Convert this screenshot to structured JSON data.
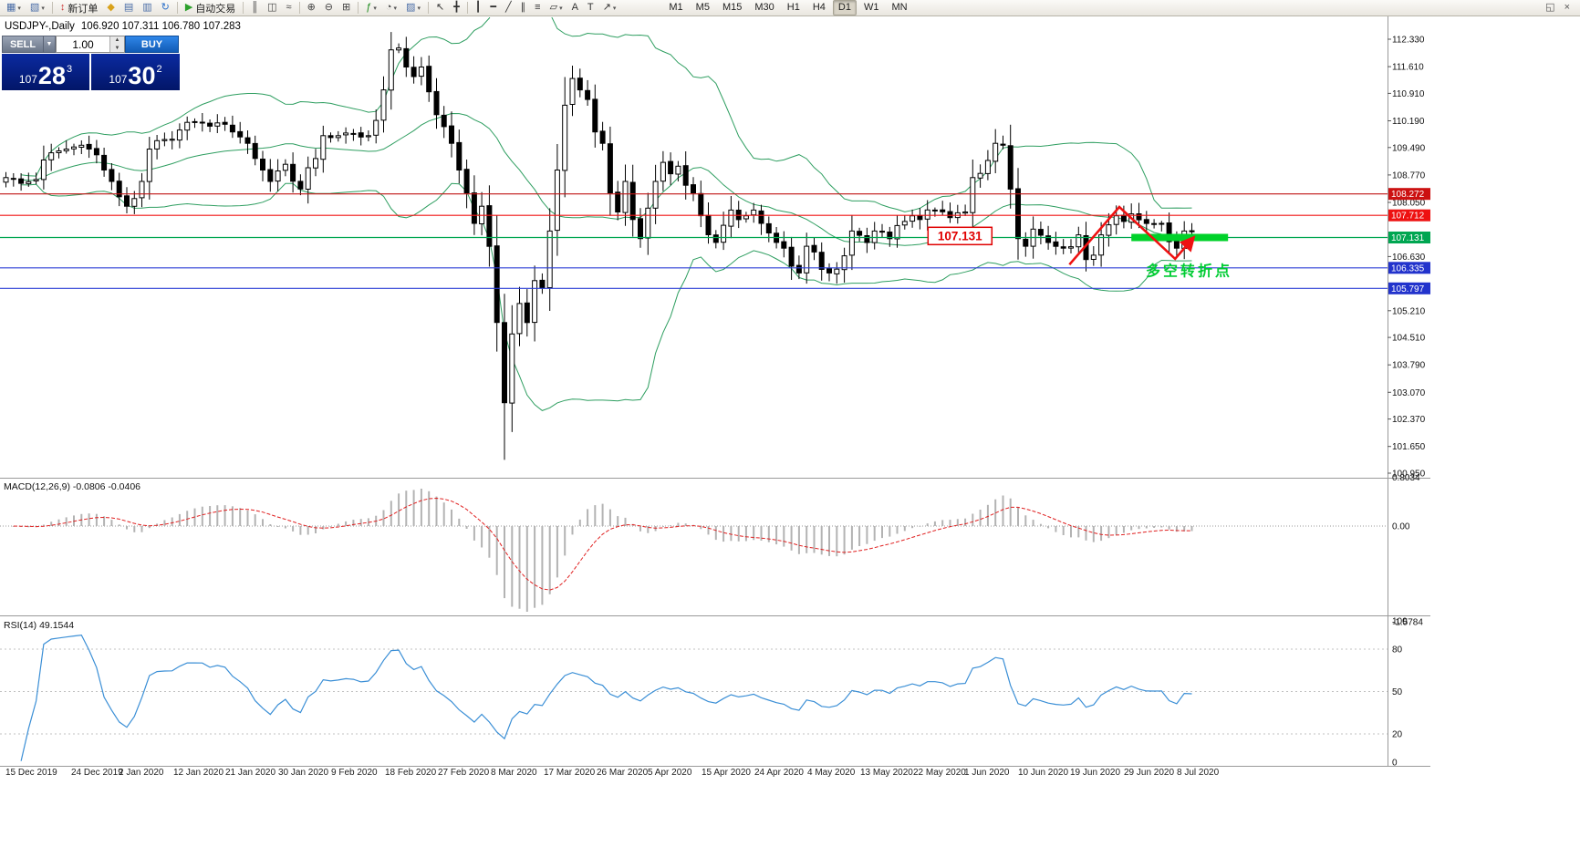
{
  "toolbar": {
    "buttons": [
      {
        "name": "new-chart",
        "glyph": "▦",
        "color": "#4a6da7",
        "dropdown": true
      },
      {
        "name": "chart-profiles",
        "glyph": "▧",
        "color": "#4a6da7",
        "dropdown": true
      },
      {
        "type": "sep"
      },
      {
        "name": "new-order",
        "glyph": "↕",
        "color": "#cc3333",
        "label": "新订单"
      },
      {
        "name": "market-watch",
        "glyph": "◆",
        "color": "#d9a21b"
      },
      {
        "name": "data-window",
        "glyph": "▤",
        "color": "#4a6da7"
      },
      {
        "name": "navigator",
        "glyph": "▥",
        "color": "#4a6da7"
      },
      {
        "name": "refresh",
        "glyph": "↻",
        "color": "#2a6fc9"
      },
      {
        "type": "sep"
      },
      {
        "name": "auto-trading",
        "glyph": "▶",
        "color": "#2ca02c",
        "label": "自动交易"
      },
      {
        "type": "sep"
      },
      {
        "name": "chart-bars",
        "glyph": "║",
        "color": "#444"
      },
      {
        "name": "chart-candles",
        "glyph": "◫",
        "color": "#444"
      },
      {
        "name": "chart-line",
        "glyph": "≈",
        "color": "#444"
      },
      {
        "type": "sep"
      },
      {
        "name": "zoom-in",
        "glyph": "⊕",
        "color": "#444"
      },
      {
        "name": "zoom-out",
        "glyph": "⊖",
        "color": "#444"
      },
      {
        "name": "tile-windows",
        "glyph": "⊞",
        "color": "#444"
      },
      {
        "type": "sep"
      },
      {
        "name": "indicators",
        "glyph": "ƒ",
        "color": "#1a8a1a",
        "dropdown": true
      },
      {
        "name": "periods",
        "glyph": "◔",
        "color": "#444",
        "dropdown": true
      },
      {
        "name": "templates",
        "glyph": "▨",
        "color": "#4a6da7",
        "dropdown": true
      },
      {
        "type": "sep"
      },
      {
        "name": "cursor",
        "glyph": "↖",
        "color": "#333"
      },
      {
        "name": "crosshair",
        "glyph": "╋",
        "color": "#333"
      },
      {
        "type": "sep"
      },
      {
        "name": "vertical-line",
        "glyph": "┃",
        "color": "#333"
      },
      {
        "name": "horizontal-line",
        "glyph": "━",
        "color": "#333"
      },
      {
        "name": "trendline",
        "glyph": "╱",
        "color": "#333"
      },
      {
        "name": "equidistant-channel",
        "glyph": "∥",
        "color": "#333"
      },
      {
        "name": "fibonacci",
        "glyph": "≡",
        "color": "#333"
      },
      {
        "name": "shapes",
        "glyph": "▱",
        "color": "#333",
        "dropdown": true
      },
      {
        "name": "text",
        "glyph": "A",
        "color": "#333"
      },
      {
        "name": "text-label",
        "glyph": "T",
        "color": "#333"
      },
      {
        "name": "arrows-tool",
        "glyph": "↗",
        "color": "#333",
        "dropdown": true
      }
    ],
    "timeframes": [
      "M1",
      "M5",
      "M15",
      "M30",
      "H1",
      "H4",
      "D1",
      "W1",
      "MN"
    ],
    "active_timeframe": "D1",
    "right_buttons": [
      {
        "name": "chart-restore",
        "glyph": "◱"
      },
      {
        "name": "chart-close",
        "glyph": "×"
      }
    ]
  },
  "chart_window": {
    "title": {
      "symbol_period": "USDJPY-,Daily",
      "ohlc": "106.920 107.311 106.780 107.283"
    }
  },
  "one_click": {
    "sell_label": "SELL",
    "buy_label": "BUY",
    "volume": "1.00",
    "bid": {
      "big": "107",
      "pips": "28",
      "pt": "3"
    },
    "ask": {
      "big": "107",
      "pips": "30",
      "pt": "2"
    }
  },
  "chart_data": {
    "type": "candlestick",
    "symbol": "USDJPY-",
    "period": "Daily",
    "ohlc_display": {
      "open": "106.920",
      "high": "107.311",
      "low": "106.780",
      "close": "107.283"
    },
    "bar_count": 158,
    "close_anchors": [
      [
        0,
        108.7
      ],
      [
        2,
        108.55
      ],
      [
        4,
        108.65
      ],
      [
        6,
        109.35
      ],
      [
        8,
        109.45
      ],
      [
        10,
        109.55
      ],
      [
        12,
        109.3
      ],
      [
        14,
        108.6
      ],
      [
        16,
        107.95
      ],
      [
        17,
        108.15
      ],
      [
        18,
        108.6
      ],
      [
        19,
        109.45
      ],
      [
        21,
        109.7
      ],
      [
        23,
        109.95
      ],
      [
        25,
        110.15
      ],
      [
        27,
        110.05
      ],
      [
        29,
        110.1
      ],
      [
        30,
        109.9
      ],
      [
        32,
        109.6
      ],
      [
        34,
        108.9
      ],
      [
        35,
        108.6
      ],
      [
        37,
        109.05
      ],
      [
        39,
        108.4
      ],
      [
        41,
        109.2
      ],
      [
        42,
        109.8
      ],
      [
        44,
        109.8
      ],
      [
        46,
        109.85
      ],
      [
        48,
        109.8
      ],
      [
        49,
        110.2
      ],
      [
        50,
        111.0
      ],
      [
        51,
        112.05
      ],
      [
        52,
        112.1
      ],
      [
        53,
        111.6
      ],
      [
        54,
        111.35
      ],
      [
        55,
        111.6
      ],
      [
        56,
        110.95
      ],
      [
        57,
        110.35
      ],
      [
        59,
        109.6
      ],
      [
        60,
        108.9
      ],
      [
        61,
        108.3
      ],
      [
        62,
        107.5
      ],
      [
        63,
        107.95
      ],
      [
        64,
        106.9
      ],
      [
        65,
        104.9
      ],
      [
        66,
        102.8
      ],
      [
        67,
        104.6
      ],
      [
        68,
        105.4
      ],
      [
        69,
        104.9
      ],
      [
        70,
        106.0
      ],
      [
        71,
        105.8
      ],
      [
        72,
        107.3
      ],
      [
        73,
        108.9
      ],
      [
        74,
        110.6
      ],
      [
        75,
        111.3
      ],
      [
        76,
        111.0
      ],
      [
        77,
        110.75
      ],
      [
        78,
        109.9
      ],
      [
        79,
        109.6
      ],
      [
        80,
        108.3
      ],
      [
        81,
        107.8
      ],
      [
        82,
        108.6
      ],
      [
        83,
        107.6
      ],
      [
        84,
        107.1
      ],
      [
        85,
        107.9
      ],
      [
        86,
        108.6
      ],
      [
        87,
        109.1
      ],
      [
        88,
        108.8
      ],
      [
        89,
        109.0
      ],
      [
        90,
        108.5
      ],
      [
        91,
        108.3
      ],
      [
        92,
        107.7
      ],
      [
        93,
        107.2
      ],
      [
        94,
        107.0
      ],
      [
        95,
        107.45
      ],
      [
        96,
        107.85
      ],
      [
        97,
        107.6
      ],
      [
        98,
        107.7
      ],
      [
        99,
        107.85
      ],
      [
        100,
        107.5
      ],
      [
        101,
        107.25
      ],
      [
        103,
        106.85
      ],
      [
        105,
        106.2
      ],
      [
        106,
        106.9
      ],
      [
        107,
        106.75
      ],
      [
        109,
        106.2
      ],
      [
        110,
        106.3
      ],
      [
        111,
        106.65
      ],
      [
        112,
        107.3
      ],
      [
        114,
        107.0
      ],
      [
        115,
        107.3
      ],
      [
        117,
        107.1
      ],
      [
        119,
        107.55
      ],
      [
        120,
        107.7
      ],
      [
        121,
        107.6
      ],
      [
        123,
        107.85
      ],
      [
        125,
        107.65
      ],
      [
        127,
        107.8
      ],
      [
        128,
        108.7
      ],
      [
        130,
        109.15
      ],
      [
        131,
        109.6
      ],
      [
        132,
        109.55
      ],
      [
        133,
        108.4
      ],
      [
        134,
        107.1
      ],
      [
        135,
        106.9
      ],
      [
        136,
        107.35
      ],
      [
        138,
        107.0
      ],
      [
        140,
        106.85
      ],
      [
        142,
        107.2
      ],
      [
        143,
        106.55
      ],
      [
        145,
        107.2
      ],
      [
        147,
        107.7
      ],
      [
        148,
        107.55
      ],
      [
        149,
        107.75
      ],
      [
        151,
        107.5
      ],
      [
        153,
        107.5
      ],
      [
        155,
        106.85
      ],
      [
        156,
        107.3
      ],
      [
        157,
        107.283
      ]
    ],
    "extremes": {
      "low": {
        "index": 66,
        "price": 101.3
      },
      "high": {
        "index": 52,
        "price": 112.22
      }
    },
    "x_labels": [
      "15 Dec 2019",
      "24 Dec 2019",
      "2 Jan 2020",
      "12 Jan 2020",
      "21 Jan 2020",
      "30 Jan 2020",
      "9 Feb 2020",
      "18 Feb 2020",
      "27 Feb 2020",
      "8 Mar 2020",
      "17 Mar 2020",
      "26 Mar 2020",
      "5 Apr 2020",
      "15 Apr 2020",
      "24 Apr 2020",
      "4 May 2020",
      "13 May 2020",
      "22 May 2020",
      "1 Jun 2020",
      "10 Jun 2020",
      "19 Jun 2020",
      "29 Jun 2020",
      "8 Jul 2020"
    ],
    "y_axis": {
      "range": [
        100.95,
        112.33
      ],
      "labels": [
        "112.330",
        "111.610",
        "110.910",
        "110.190",
        "109.490",
        "108.770",
        "108.050",
        "106.630",
        "105.210",
        "104.510",
        "103.790",
        "103.070",
        "102.370",
        "101.650",
        "100.950"
      ],
      "label_values": [
        112.33,
        111.61,
        110.91,
        110.19,
        109.49,
        108.77,
        108.05,
        106.63,
        105.21,
        104.51,
        103.79,
        103.07,
        102.37,
        101.65,
        100.95
      ]
    },
    "indicators": {
      "bollinger": {
        "period": 20,
        "deviation": 2,
        "color": "#2e9e60"
      },
      "macd": {
        "label": "MACD(12,26,9) -0.0806 -0.0406",
        "params": [
          12,
          26,
          9
        ],
        "value_main": -0.0806,
        "value_signal": -0.0406,
        "scale": [
          "0.8034",
          "0.00",
          "-1.5784"
        ],
        "scale_values": [
          0.8034,
          0,
          -1.5784
        ],
        "histogram_color": "#b3b3b3",
        "signal_color": "#e02020"
      },
      "rsi": {
        "label": "RSI(14) 49.1544",
        "period": 14,
        "value": 49.1544,
        "levels": [
          80,
          50,
          20
        ],
        "scale": [
          "100",
          "80",
          "50",
          "20",
          "0"
        ],
        "scale_values": [
          100,
          80,
          50,
          20,
          0
        ],
        "line_color": "#3b8fd6"
      }
    }
  },
  "annotations": {
    "hlines": [
      {
        "price": 108.272,
        "color": "#c11515",
        "tag": "108.272",
        "tag_bg": "#cc1111"
      },
      {
        "price": 107.712,
        "color": "#f01515",
        "tag": "107.712",
        "tag_bg": "#ee1111"
      },
      {
        "price": 107.131,
        "color": "#00a651",
        "tag": "107.131",
        "tag_bg": "#00a651"
      },
      {
        "price": 106.335,
        "color": "#2b3fd6",
        "tag": "106.335",
        "tag_bg": "#2233cc"
      },
      {
        "price": 105.797,
        "color": "#2b3fd6",
        "tag": "105.797",
        "tag_bg": "#2233cc"
      }
    ],
    "price_callout": {
      "text": "107.131",
      "bar": 126.3,
      "price": 107.17,
      "color": "#e00000"
    },
    "turning_point_text": {
      "text": "多空转折点",
      "bar": 150.9,
      "price": 106.25,
      "color": "#00cc33"
    },
    "support_bar": {
      "bar_from": 149,
      "bar_to": 161.8,
      "price": 107.131,
      "color": "#00d22a"
    },
    "trend_arrow": {
      "color": "#ee1111",
      "points": [
        [
          140.8,
          106.42
        ],
        [
          147.4,
          107.93
        ],
        [
          154.8,
          106.57
        ],
        [
          157.2,
          107.12
        ]
      ]
    }
  }
}
